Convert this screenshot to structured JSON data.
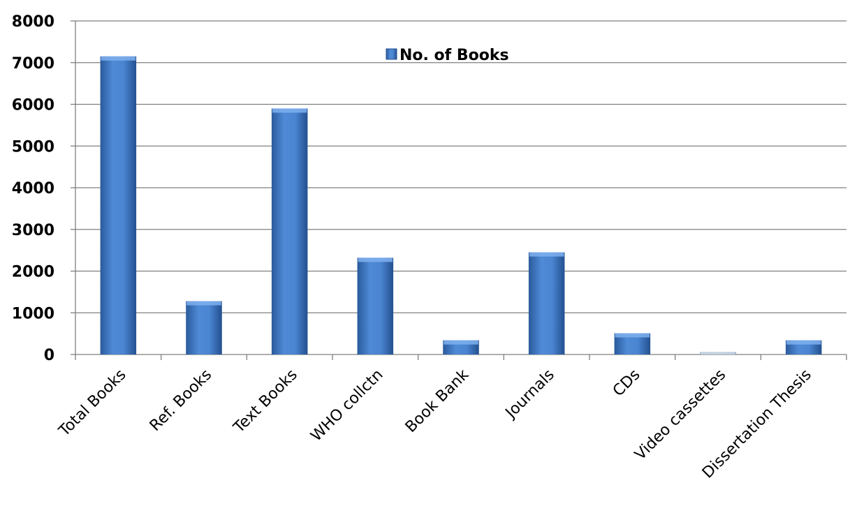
{
  "chart_data": {
    "type": "bar",
    "categories": [
      "Total Books",
      "Ref. Books",
      "Text Books",
      "WHO collctn",
      "Book Bank",
      "Journals",
      "CDs",
      "Video cassettes",
      "Dissertation Thesis"
    ],
    "series": [
      {
        "name": "No. of Books",
        "values": [
          7150,
          1280,
          5900,
          2320,
          340,
          2450,
          510,
          60,
          340
        ]
      }
    ],
    "ylim": [
      0,
      8000
    ],
    "yticks": [
      0,
      1000,
      2000,
      3000,
      4000,
      5000,
      6000,
      7000,
      8000
    ],
    "grid": true,
    "legend_position": "top-center",
    "colors": {
      "bar": "#3f78c6",
      "bar_light": "#6fa3e6",
      "bar_dark": "#23508f",
      "faint_bar": "#9fb3c8",
      "grid": "#7f7f7f"
    }
  }
}
